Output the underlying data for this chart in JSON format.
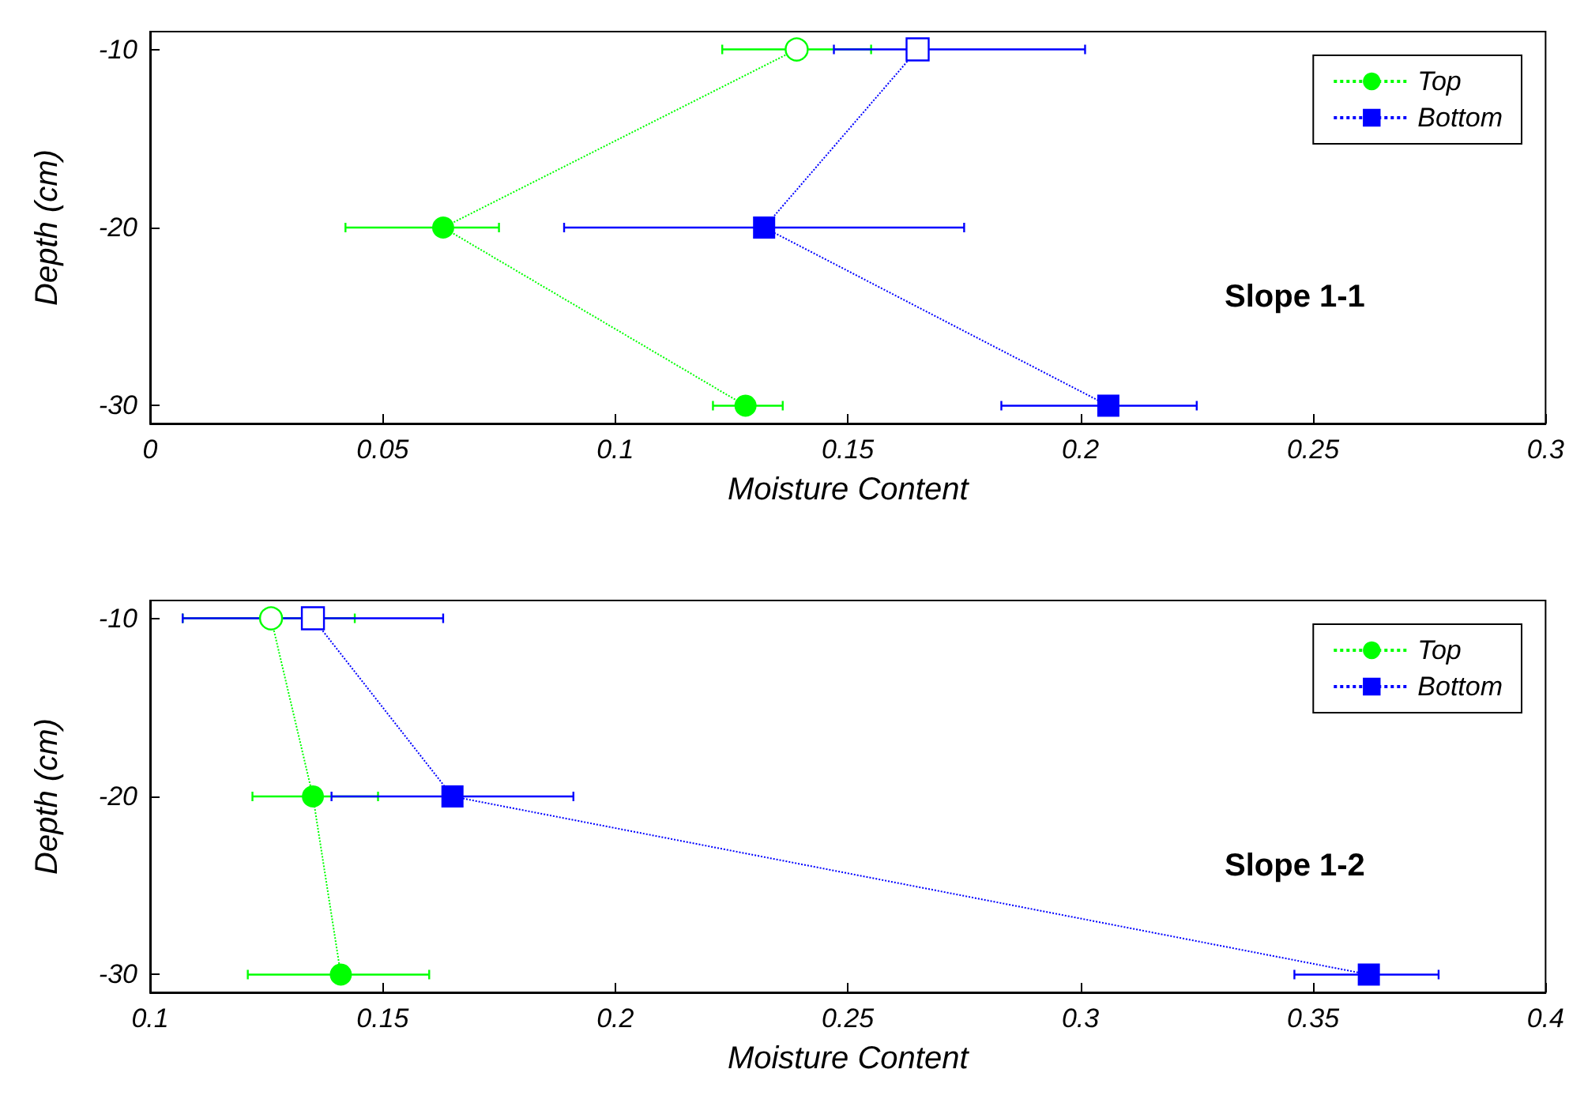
{
  "chart_data": [
    {
      "type": "line",
      "xlabel": "Moisture Content",
      "ylabel": "Depth (cm)",
      "annotations": [
        "Slope 1-1"
      ],
      "xlim": [
        0,
        0.3
      ],
      "xticks": [
        0,
        0.05,
        0.1,
        0.15,
        0.2,
        0.25,
        0.3
      ],
      "ylim": [
        -31,
        -9
      ],
      "yticks": [
        -30,
        -20,
        -10
      ],
      "legend": "top right",
      "grid": false,
      "line_style": "dotted",
      "series": [
        {
          "name": "Top",
          "color": "#00ff00",
          "marker": "circle",
          "x": [
            0.139,
            0.063,
            0.128
          ],
          "values": [
            -10,
            -20,
            -30
          ],
          "xerrors": [
            [
              0.123,
              0.155
            ],
            [
              0.042,
              0.075
            ],
            [
              0.121,
              0.136
            ]
          ]
        },
        {
          "name": "Bottom",
          "color": "#0000ff",
          "marker": "square",
          "x": [
            0.165,
            0.132,
            0.206
          ],
          "values": [
            -10,
            -20,
            -30
          ],
          "xerrors": [
            [
              0.147,
              0.201
            ],
            [
              0.089,
              0.175
            ],
            [
              0.183,
              0.225
            ]
          ]
        }
      ]
    },
    {
      "type": "line",
      "xlabel": "Moisture Content",
      "ylabel": "Depth (cm)",
      "annotations": [
        "Slope 1-2"
      ],
      "xlim": [
        0.1,
        0.4
      ],
      "xticks": [
        0.1,
        0.15,
        0.2,
        0.25,
        0.3,
        0.35,
        0.4
      ],
      "ylim": [
        -31,
        -9
      ],
      "yticks": [
        -30,
        -20,
        -10
      ],
      "legend": "top right",
      "grid": false,
      "line_style": "dotted",
      "series": [
        {
          "name": "Top",
          "color": "#00ff00",
          "marker": "circle",
          "x": [
            0.126,
            0.135,
            0.141
          ],
          "values": [
            -10,
            -20,
            -30
          ],
          "xerrors": [
            [
              0.107,
              0.144
            ],
            [
              0.122,
              0.149
            ],
            [
              0.121,
              0.16
            ]
          ]
        },
        {
          "name": "Bottom",
          "color": "#0000ff",
          "marker": "square",
          "x": [
            0.135,
            0.165,
            0.362
          ],
          "values": [
            -10,
            -20,
            -30
          ],
          "xerrors": [
            [
              0.107,
              0.163
            ],
            [
              0.139,
              0.191
            ],
            [
              0.346,
              0.377
            ]
          ]
        }
      ]
    }
  ]
}
